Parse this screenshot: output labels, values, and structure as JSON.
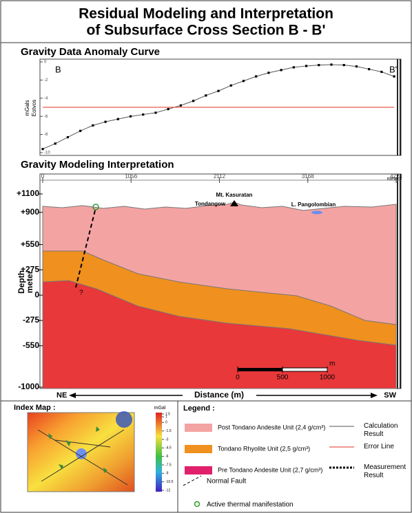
{
  "title_lines": [
    "Residual Modeling and Interpretation",
    "of Subsurface Cross Section B - B'"
  ],
  "anomaly_panel": {
    "heading": "Gravity Data Anomaly Curve",
    "y_label_lines": [
      "mGals",
      "Eotvos"
    ],
    "left_label": "B",
    "right_label": "B'"
  },
  "chart_data": {
    "type": "line",
    "x": [
      0,
      150,
      300,
      450,
      600,
      750,
      900,
      1050,
      1200,
      1350,
      1500,
      1650,
      1800,
      1950,
      2100,
      2250,
      2400,
      2550,
      2700,
      2850,
      3000,
      3150,
      3300,
      3450,
      3600,
      3750,
      3900,
      4050,
      4200
    ],
    "series": [
      {
        "name": "Calculation Result",
        "color": "#555555",
        "style": "solid",
        "values": [
          -9.6,
          -9.0,
          -8.3,
          -7.6,
          -7.0,
          -6.6,
          -6.3,
          -6.0,
          -5.8,
          -5.6,
          -5.2,
          -4.8,
          -4.3,
          -3.7,
          -3.2,
          -2.6,
          -2.1,
          -1.6,
          -1.2,
          -0.9,
          -0.6,
          -0.45,
          -0.35,
          -0.3,
          -0.35,
          -0.5,
          -0.8,
          -1.1,
          -1.6
        ]
      },
      {
        "name": "Error Line",
        "color": "#e03020",
        "style": "solid",
        "values": [
          -5,
          -5,
          -5,
          -5,
          -5,
          -5,
          -5,
          -5,
          -5,
          -5,
          -5,
          -5,
          -5,
          -5,
          -5,
          -5,
          -5,
          -5,
          -5,
          -5,
          -5,
          -5,
          -5,
          -5,
          -5,
          -5,
          -5,
          -5,
          -5
        ]
      },
      {
        "name": "Measurement Result",
        "color": "#000000",
        "style": "dotted",
        "values": [
          -9.6,
          -9.0,
          -8.3,
          -7.6,
          -7.0,
          -6.6,
          -6.3,
          -6.0,
          -5.8,
          -5.6,
          -5.2,
          -4.8,
          -4.3,
          -3.7,
          -3.2,
          -2.6,
          -2.1,
          -1.6,
          -1.2,
          -0.9,
          -0.6,
          -0.45,
          -0.35,
          -0.3,
          -0.35,
          -0.5,
          -0.8,
          -1.1,
          -1.6
        ]
      }
    ],
    "xlim": [
      0,
      4224
    ],
    "ylim": [
      -10,
      0
    ],
    "yticks": [
      0,
      -2,
      -4,
      -6,
      -8,
      -10
    ]
  },
  "model_panel": {
    "heading": "Gravity Modeling Interpretation",
    "x_unit": "meters",
    "xlim": [
      0,
      4224
    ],
    "xticks": [
      0,
      1056,
      2112,
      3168,
      4224
    ],
    "ylim": [
      -1000,
      1100
    ],
    "yticks": [
      {
        "value": 1100,
        "label": "+1100"
      },
      {
        "value": 900,
        "label": "+900"
      },
      {
        "value": 550,
        "label": "+550"
      },
      {
        "value": 275,
        "label": "+275"
      },
      0,
      -275,
      -550,
      -1000
    ],
    "depth_label_lines": [
      "Depth",
      "meter"
    ],
    "labels": {
      "mountain": "Mt. Kasuratan",
      "village": "Tondangow",
      "lake": "L. Pangolombian",
      "fault_query": "?"
    },
    "scale_bar": {
      "unit": "m",
      "ticks": [
        0,
        500,
        1000
      ]
    },
    "direction": {
      "left": "NE",
      "center": "Distance (m)",
      "right": "SW"
    }
  },
  "index_map": {
    "heading": "Index Map :",
    "unit": "mGal",
    "colorbar_ticks": [
      1.5,
      1,
      0,
      -1.5,
      -3,
      -4.5,
      -6,
      -7.5,
      -9,
      -10.5,
      -12
    ]
  },
  "legend": {
    "heading": "Legend :",
    "units": [
      "Post Tondano Andesite Unit (2,4 g/cm³)",
      "Tondano Rhyolite Unit (2,5 g/cm³)",
      "Pre Tondano Andesite Unit (2,7 g/cm³)"
    ],
    "unit_colors": [
      "#f4a3a3",
      "#f0901e",
      "#e0206a"
    ],
    "fault": "Normal Fault",
    "thermal": "Active thermal manifestation"
  }
}
